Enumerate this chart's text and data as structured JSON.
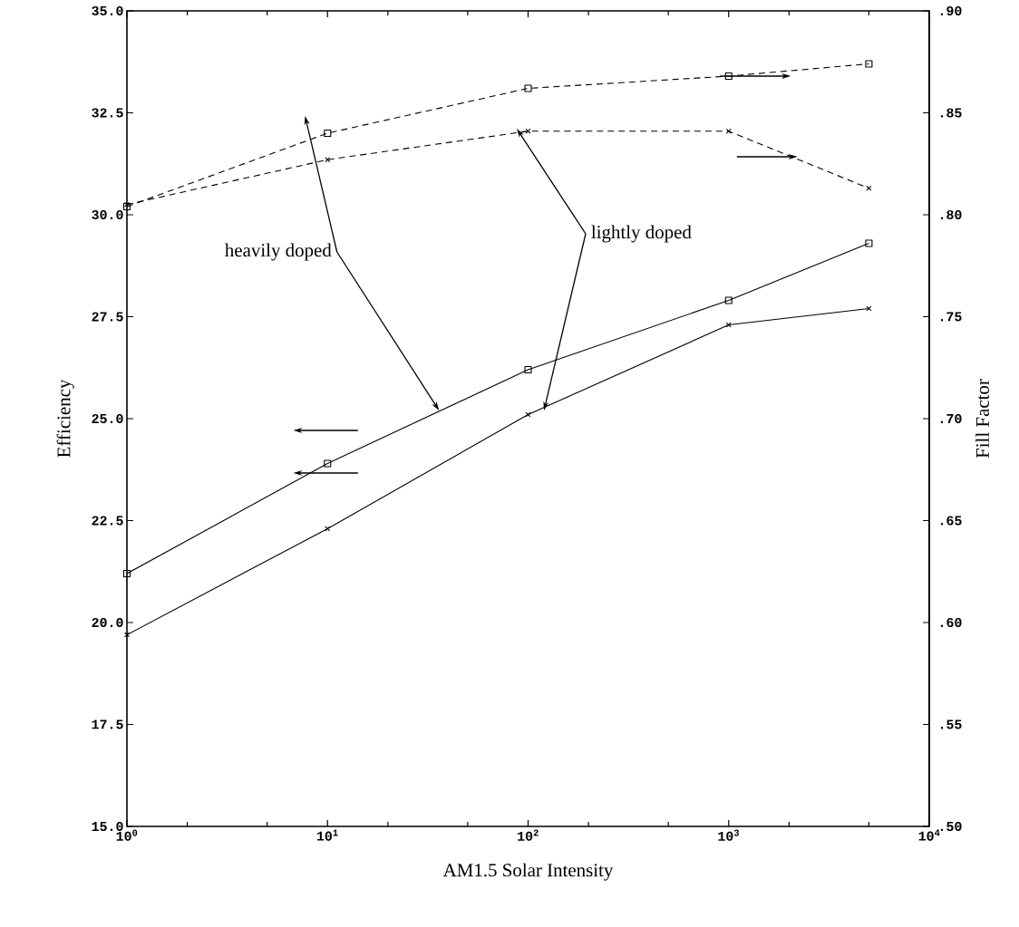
{
  "chart_data": {
    "type": "line",
    "xlabel": "AM1.5 Solar Intensity",
    "ylabel": "Efficiency",
    "y2label": "Fill Factor",
    "x": [
      1,
      10,
      100,
      1000,
      5000
    ],
    "series": [
      {
        "color": "#000000",
        "marker": "square",
        "line_style": "solid",
        "values": [
          21.2,
          23.9,
          26.2,
          27.9,
          29.3
        ]
      },
      {
        "color": "#000000",
        "marker": "cross",
        "line_style": "solid",
        "values": [
          19.7,
          22.3,
          25.1,
          27.3,
          27.7
        ]
      },
      {
        "color": "#000000",
        "marker": "square",
        "line_style": "dashed",
        "axis": "y2",
        "values": [
          0.804,
          0.84,
          0.862,
          0.868,
          0.874
        ]
      },
      {
        "color": "#000000",
        "marker": "cross",
        "line_style": "dashed",
        "axis": "y2",
        "values": [
          0.805,
          0.827,
          0.841,
          0.841,
          0.813
        ]
      }
    ],
    "log": "x",
    "grid": false,
    "xlim": [
      1,
      10000
    ],
    "xticks": [
      {
        "value": 1,
        "label": "10$^{0}$"
      },
      {
        "value": 10,
        "label": "10$^{1}$"
      },
      {
        "value": 100,
        "label": "10$^{2}$"
      },
      {
        "value": 1000,
        "label": "10$^{3}$"
      },
      {
        "value": 10000,
        "label": "10$^{4}$"
      }
    ],
    "ylim": [
      15,
      35
    ],
    "yticks": [
      {
        "value": 15,
        "label": "15.0"
      },
      {
        "value": 17.5,
        "label": "17.5"
      },
      {
        "value": 20,
        "label": "20.0"
      },
      {
        "value": 22.5,
        "label": "22.5"
      },
      {
        "value": 25,
        "label": "25.0"
      },
      {
        "value": 27.5,
        "label": "27.5"
      },
      {
        "value": 30,
        "label": "30.0"
      },
      {
        "value": 32.5,
        "label": "32.5"
      },
      {
        "value": 35,
        "label": "35.0"
      }
    ],
    "y2lim": [
      0.5,
      0.9
    ],
    "y2ticks": [
      {
        "value": 0.5,
        "label": ".50"
      },
      {
        "value": 0.55,
        "label": ".55"
      },
      {
        "value": 0.6,
        "label": ".60"
      },
      {
        "value": 0.65,
        "label": ".65"
      },
      {
        "value": 0.7,
        "label": ".70"
      },
      {
        "value": 0.75,
        "label": ".75"
      },
      {
        "value": 0.8,
        "label": ".80"
      },
      {
        "value": 0.85,
        "label": ".85"
      },
      {
        "value": 0.9,
        "label": ".90"
      }
    ],
    "annotations": [
      {
        "text": "heavily doped",
        "x": 36,
        "y": 25.2
      },
      {
        "text": "lightly doped",
        "x": 120,
        "y": 25.2
      }
    ]
  }
}
